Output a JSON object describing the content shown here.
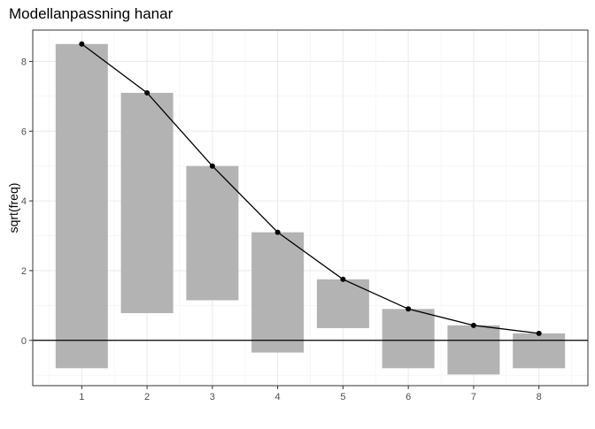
{
  "chart_data": {
    "type": "bar",
    "subtype": "hanging rootogram",
    "title": "Modellanpassning hanar",
    "xlabel": "",
    "ylabel": "sqrt(freq)",
    "x": [
      1,
      2,
      3,
      4,
      5,
      6,
      7,
      8
    ],
    "x_ticks": [
      1,
      2,
      3,
      4,
      5,
      6,
      7,
      8
    ],
    "y_ticks": [
      0,
      2,
      4,
      6,
      8
    ],
    "xlim": [
      0.25,
      8.75
    ],
    "ylim": [
      -1.3,
      8.9
    ],
    "grid": true,
    "reference_line_y": 0,
    "series": [
      {
        "kind": "bars",
        "color": "#b3b3b3",
        "bottom": [
          -0.8,
          0.78,
          1.15,
          -0.35,
          0.35,
          -0.8,
          -0.98,
          -0.8
        ],
        "top": [
          8.5,
          7.1,
          5.0,
          3.1,
          1.75,
          0.9,
          0.43,
          0.2
        ]
      },
      {
        "kind": "line+points",
        "color": "#000000",
        "values": [
          8.5,
          7.1,
          5.0,
          3.1,
          1.75,
          0.9,
          0.43,
          0.2
        ]
      }
    ]
  }
}
